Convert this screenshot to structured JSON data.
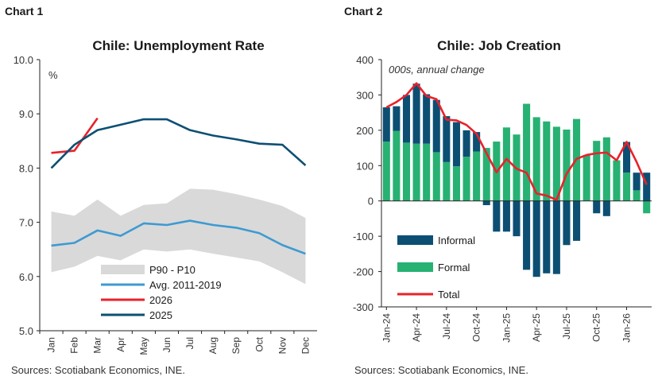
{
  "chart_data": [
    {
      "panel_label": "Chart 1",
      "type": "line",
      "title": "Chile: Unemployment Rate",
      "unit_label": "%",
      "source": "Sources: Scotiabank Economics, INE.",
      "ylim": [
        5.0,
        10.0
      ],
      "yticks": [
        "5.0",
        "6.0",
        "7.0",
        "8.0",
        "9.0",
        "10.0"
      ],
      "categories": [
        "Jan",
        "Feb",
        "Mar",
        "Apr",
        "May",
        "Jun",
        "Jul",
        "Aug",
        "Sep",
        "Oct",
        "Nov",
        "Dec"
      ],
      "band": {
        "name": "P90 - P10",
        "color": "#d9d9d9",
        "upper": [
          7.2,
          7.12,
          7.42,
          7.12,
          7.32,
          7.35,
          7.62,
          7.6,
          7.52,
          7.42,
          7.3,
          7.08
        ],
        "lower": [
          6.08,
          6.18,
          6.38,
          6.3,
          6.5,
          6.46,
          6.5,
          6.42,
          6.35,
          6.28,
          6.08,
          5.86
        ]
      },
      "series": [
        {
          "name": "Avg. 2011-2019",
          "color": "#3e9ad1",
          "values": [
            6.57,
            6.62,
            6.85,
            6.75,
            6.98,
            6.95,
            7.03,
            6.95,
            6.9,
            6.8,
            6.58,
            6.42
          ]
        },
        {
          "name": "2026",
          "color": "#e8222b",
          "values": [
            8.28,
            8.32,
            8.92,
            null,
            null,
            null,
            null,
            null,
            null,
            null,
            null,
            null
          ]
        },
        {
          "name": "2025",
          "color": "#0d4f73",
          "values": [
            8.0,
            8.43,
            8.7,
            8.8,
            8.9,
            8.9,
            8.7,
            8.6,
            8.53,
            8.45,
            8.43,
            8.05
          ]
        }
      ],
      "legend": [
        "P90 - P10",
        "Avg. 2011-2019",
        "2026",
        "2025"
      ],
      "legend_position": "bottom-left"
    },
    {
      "panel_label": "Chart 2",
      "type": "bar",
      "title": "Chile: Job Creation",
      "unit_label": "000s, annual change",
      "source": "Sources: Scotiabank Economics, INE.",
      "ylim": [
        -300,
        400
      ],
      "yticks": [
        "-300",
        "-200",
        "-100",
        "0",
        "100",
        "200",
        "300",
        "400"
      ],
      "categories": [
        "Jan-24",
        "Feb-24",
        "Mar-24",
        "Apr-24",
        "May-24",
        "Jun-24",
        "Jul-24",
        "Aug-24",
        "Sep-24",
        "Oct-24",
        "Nov-24",
        "Dec-24",
        "Jan-25",
        "Feb-25",
        "Mar-25",
        "Apr-25",
        "May-25",
        "Jun-25",
        "Jul-25",
        "Aug-25",
        "Sep-25",
        "Oct-25",
        "Nov-25",
        "Dec-25",
        "Jan-26",
        "Feb-26",
        "Mar-26"
      ],
      "xtick_labels": [
        "Jan-24",
        "Apr-24",
        "Jul-24",
        "Oct-24",
        "Jan-25",
        "Apr-25",
        "Jul-25",
        "Oct-25",
        "Jan-26"
      ],
      "series": [
        {
          "name": "Informal",
          "color": "#0d4f73",
          "values": [
            97,
            70,
            135,
            170,
            140,
            148,
            130,
            125,
            75,
            55,
            -12,
            -87,
            -87,
            -100,
            -195,
            -215,
            -205,
            -207,
            -125,
            -113,
            0,
            -35,
            -43,
            0,
            87,
            50,
            80
          ]
        },
        {
          "name": "Formal",
          "color": "#27b172",
          "values": [
            168,
            198,
            165,
            162,
            162,
            138,
            110,
            98,
            125,
            140,
            150,
            168,
            208,
            188,
            275,
            237,
            225,
            210,
            202,
            232,
            130,
            170,
            180,
            115,
            80,
            30,
            -35
          ]
        },
        {
          "name": "Total",
          "color": "#e8222b",
          "values": [
            265,
            280,
            300,
            333,
            297,
            288,
            230,
            228,
            215,
            190,
            135,
            81,
            119,
            91,
            80,
            21,
            15,
            3,
            77,
            119,
            130,
            135,
            137,
            115,
            167,
            110,
            46
          ]
        }
      ],
      "legend": [
        "Informal",
        "Formal",
        "Total"
      ],
      "legend_position": "bottom-left"
    }
  ]
}
